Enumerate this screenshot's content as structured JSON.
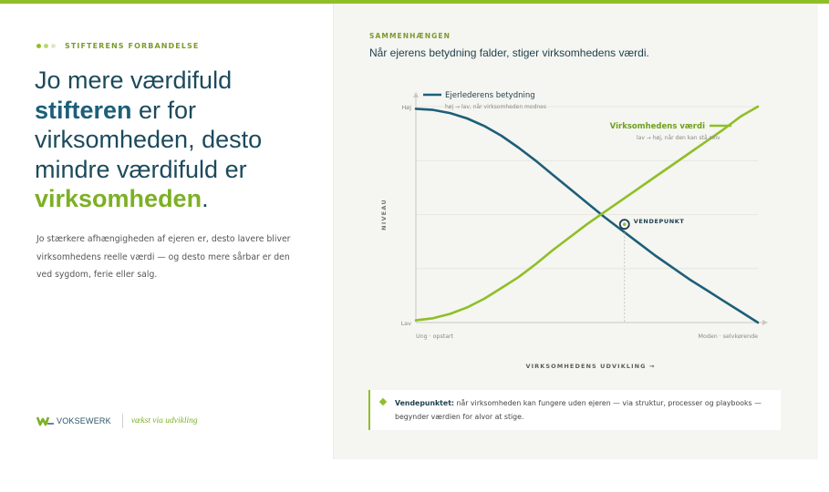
{
  "left": {
    "kicker": "STIFTERENS FORBANDELSE",
    "headline": {
      "part1": "Jo mere værdifuld",
      "part2": "stifteren",
      "part3": " er for virksomheden, desto mindre værdifuld er",
      "part4": "virksomheden",
      "part5": "."
    },
    "body": "Jo stærkere afhængigheden af ejeren er, desto lavere bliver virksomhedens reelle værdi — og desto mere sårbar er den ved sygdom, ferie eller salg.",
    "logo": {
      "brand": "VOKSEWERK",
      "tagline": "vækst via udvikling"
    }
  },
  "right": {
    "kicker": "SAMMENHÆNGEN",
    "title": "Når ejerens betydning falder, stiger virksomhedens værdi."
  },
  "chart_data": {
    "type": "line",
    "xlabel": "VIRKSOMHEDENS UDVIKLING →",
    "ylabel": "NIVEAU",
    "x_ticks": [
      "Ung · opstart",
      "Moden · selvkørende"
    ],
    "y_ticks": [
      "Høj",
      "Lav"
    ],
    "xlim": [
      0,
      1
    ],
    "ylim": [
      0,
      1
    ],
    "grid": true,
    "series": [
      {
        "name": "Ejerlederens betydning",
        "subtitle": "høj → lav, når virksomheden modnes",
        "color": "#1c5f79",
        "x": [
          0,
          0.05,
          0.1,
          0.15,
          0.2,
          0.25,
          0.3,
          0.35,
          0.4,
          0.45,
          0.5,
          0.55,
          0.6,
          0.65,
          0.7,
          0.75,
          0.8,
          0.85,
          0.9,
          0.95,
          1
        ],
        "y": [
          0.99,
          0.985,
          0.97,
          0.945,
          0.91,
          0.865,
          0.81,
          0.75,
          0.685,
          0.62,
          0.555,
          0.49,
          0.43,
          0.37,
          0.31,
          0.255,
          0.2,
          0.15,
          0.1,
          0.05,
          0.0
        ]
      },
      {
        "name": "Virksomhedens værdi",
        "subtitle": "lav → høj, når den kan stå selv",
        "color": "#8fbf27",
        "x": [
          0,
          0.05,
          0.1,
          0.15,
          0.2,
          0.25,
          0.3,
          0.35,
          0.4,
          0.45,
          0.5,
          0.55,
          0.6,
          0.65,
          0.7,
          0.75,
          0.8,
          0.85,
          0.9,
          0.95,
          1
        ],
        "y": [
          0.01,
          0.02,
          0.04,
          0.07,
          0.11,
          0.16,
          0.21,
          0.27,
          0.335,
          0.395,
          0.455,
          0.51,
          0.565,
          0.62,
          0.675,
          0.73,
          0.785,
          0.84,
          0.895,
          0.955,
          1.0
        ]
      }
    ],
    "annotation": {
      "label": "VENDEPUNKT",
      "x": 0.61,
      "y": 0.455
    }
  },
  "callout": {
    "label": "Vendepunktet:",
    "text": " når virksomheden kan fungere uden ejeren — via struktur, processer og playbooks — begynder værdien for alvor at stige."
  }
}
